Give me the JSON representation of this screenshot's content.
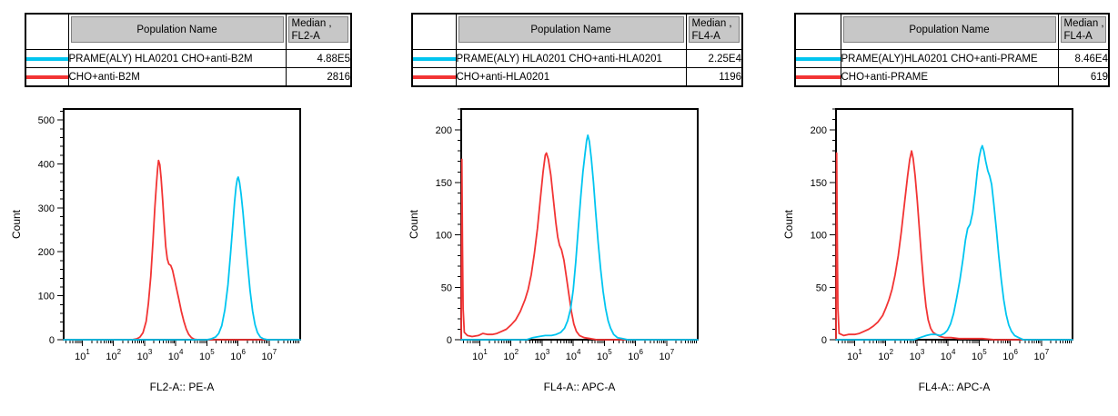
{
  "colors": {
    "cyan_series": "#00C5F0",
    "red_series": "#F23434",
    "table_header_bg": "#C7C7C7",
    "axis": "#000000",
    "background": "#FFFFFF"
  },
  "panels": [
    {
      "table": {
        "header": {
          "population": "Population Name",
          "median_line1": "Median ,",
          "median_line2": "FL2-A"
        },
        "rows": [
          {
            "color": "#00C5F0",
            "name": "PRAME(ALY) HLA0201 CHO+anti-B2M",
            "median": "4.88E5"
          },
          {
            "color": "#F23434",
            "name": "CHO+anti-B2M",
            "median": "2816"
          }
        ]
      }
    },
    {
      "table": {
        "header": {
          "population": "Population Name",
          "median_line1": "Median ,",
          "median_line2": "FL4-A"
        },
        "rows": [
          {
            "color": "#00C5F0",
            "name": "PRAME(ALY) HLA0201 CHO+anti-HLA0201",
            "median": "2.25E4"
          },
          {
            "color": "#F23434",
            "name": "CHO+anti-HLA0201",
            "median": "1196"
          }
        ]
      }
    },
    {
      "table": {
        "header": {
          "population": "Population Name",
          "median_line1": "Median ,",
          "median_line2": "FL4-A"
        },
        "rows": [
          {
            "color": "#00C5F0",
            "name": "PRAME(ALY)HLA0201 CHO+anti-PRAME",
            "median": "8.46E4"
          },
          {
            "color": "#F23434",
            "name": "CHO+anti-PRAME",
            "median": "619"
          }
        ]
      }
    }
  ],
  "chart_data": [
    {
      "type": "line",
      "subtype": "flow-cytometry-histogram",
      "title": "",
      "xlabel": "FL2-A:: PE-A",
      "ylabel": "Count",
      "xscale": "log10",
      "xlim_log10": [
        0.4,
        8.0
      ],
      "x_major_ticks_exponents": [
        1,
        2,
        3,
        4,
        5,
        6,
        7
      ],
      "ylim": [
        0,
        525
      ],
      "y_major_ticks": [
        0,
        100,
        200,
        300,
        400,
        500
      ],
      "y_minor_step": 20,
      "grid": false,
      "legend": "none",
      "series": [
        {
          "name": "CHO+anti-B2M",
          "color": "#F23434",
          "median": "2816",
          "peak_count": 408,
          "points": [
            [
              0.4,
              0
            ],
            [
              2.6,
              0
            ],
            [
              2.75,
              2
            ],
            [
              2.85,
              6
            ],
            [
              2.95,
              16
            ],
            [
              3.05,
              42
            ],
            [
              3.12,
              82
            ],
            [
              3.2,
              145
            ],
            [
              3.27,
              225
            ],
            [
              3.33,
              300
            ],
            [
              3.38,
              352
            ],
            [
              3.42,
              390
            ],
            [
              3.45,
              408
            ],
            [
              3.49,
              398
            ],
            [
              3.53,
              368
            ],
            [
              3.58,
              318
            ],
            [
              3.63,
              262
            ],
            [
              3.68,
              212
            ],
            [
              3.73,
              184
            ],
            [
              3.78,
              172
            ],
            [
              3.84,
              169
            ],
            [
              3.9,
              158
            ],
            [
              3.96,
              138
            ],
            [
              4.03,
              115
            ],
            [
              4.1,
              92
            ],
            [
              4.18,
              65
            ],
            [
              4.26,
              42
            ],
            [
              4.34,
              24
            ],
            [
              4.42,
              12
            ],
            [
              4.5,
              5
            ],
            [
              4.6,
              1
            ],
            [
              4.72,
              0
            ],
            [
              8,
              0
            ]
          ]
        },
        {
          "name": "PRAME(ALY) HLA0201 CHO+anti-B2M",
          "color": "#00C5F0",
          "median": "4.88E5",
          "peak_count": 370,
          "points": [
            [
              0.4,
              0
            ],
            [
              5.0,
              0
            ],
            [
              5.15,
              2
            ],
            [
              5.28,
              6
            ],
            [
              5.38,
              14
            ],
            [
              5.48,
              32
            ],
            [
              5.58,
              68
            ],
            [
              5.68,
              125
            ],
            [
              5.76,
              195
            ],
            [
              5.83,
              258
            ],
            [
              5.89,
              312
            ],
            [
              5.94,
              348
            ],
            [
              5.98,
              366
            ],
            [
              6.01,
              370
            ],
            [
              6.05,
              358
            ],
            [
              6.1,
              332
            ],
            [
              6.16,
              290
            ],
            [
              6.23,
              235
            ],
            [
              6.31,
              172
            ],
            [
              6.39,
              112
            ],
            [
              6.47,
              65
            ],
            [
              6.55,
              34
            ],
            [
              6.63,
              16
            ],
            [
              6.72,
              6
            ],
            [
              6.82,
              2
            ],
            [
              6.95,
              0
            ],
            [
              8,
              0
            ]
          ]
        }
      ]
    },
    {
      "type": "line",
      "subtype": "flow-cytometry-histogram",
      "title": "",
      "xlabel": "FL4-A:: APC-A",
      "ylabel": "Count",
      "xscale": "log10",
      "xlim_log10": [
        0.4,
        8.0
      ],
      "x_major_ticks_exponents": [
        1,
        2,
        3,
        4,
        5,
        6,
        7
      ],
      "ylim": [
        0,
        220
      ],
      "y_major_ticks": [
        0,
        50,
        100,
        150,
        200
      ],
      "y_minor_step": 10,
      "grid": false,
      "legend": "none",
      "series": [
        {
          "name": "CHO+anti-HLA0201",
          "color": "#F23434",
          "median": "1196",
          "peak_count": 178,
          "points": [
            [
              0.4,
              0
            ],
            [
              0.42,
              172
            ],
            [
              0.44,
              90
            ],
            [
              0.46,
              30
            ],
            [
              0.5,
              7
            ],
            [
              0.6,
              4
            ],
            [
              0.75,
              3
            ],
            [
              0.95,
              4
            ],
            [
              1.1,
              6
            ],
            [
              1.25,
              5
            ],
            [
              1.4,
              5
            ],
            [
              1.55,
              6
            ],
            [
              1.7,
              8
            ],
            [
              1.85,
              10
            ],
            [
              2.0,
              14
            ],
            [
              2.15,
              19
            ],
            [
              2.3,
              27
            ],
            [
              2.45,
              38
            ],
            [
              2.55,
              48
            ],
            [
              2.65,
              62
            ],
            [
              2.75,
              82
            ],
            [
              2.85,
              106
            ],
            [
              2.95,
              136
            ],
            [
              3.03,
              160
            ],
            [
              3.1,
              176
            ],
            [
              3.14,
              178
            ],
            [
              3.2,
              172
            ],
            [
              3.28,
              157
            ],
            [
              3.36,
              134
            ],
            [
              3.44,
              112
            ],
            [
              3.5,
              98
            ],
            [
              3.56,
              90
            ],
            [
              3.62,
              86
            ],
            [
              3.7,
              76
            ],
            [
              3.78,
              60
            ],
            [
              3.86,
              43
            ],
            [
              3.94,
              27
            ],
            [
              4.02,
              15
            ],
            [
              4.1,
              8
            ],
            [
              4.2,
              4
            ],
            [
              4.35,
              2
            ],
            [
              4.55,
              1
            ],
            [
              4.75,
              0
            ],
            [
              8,
              0
            ]
          ]
        },
        {
          "name": "PRAME(ALY) HLA0201 CHO+anti-HLA0201",
          "color": "#00C5F0",
          "median": "2.25E4",
          "peak_count": 195,
          "points": [
            [
              0.4,
              0
            ],
            [
              2.5,
              0
            ],
            [
              2.7,
              2
            ],
            [
              2.9,
              3
            ],
            [
              3.1,
              4
            ],
            [
              3.3,
              4
            ],
            [
              3.45,
              5
            ],
            [
              3.6,
              7
            ],
            [
              3.72,
              11
            ],
            [
              3.82,
              18
            ],
            [
              3.92,
              30
            ],
            [
              4.0,
              48
            ],
            [
              4.08,
              74
            ],
            [
              4.16,
              105
            ],
            [
              4.24,
              136
            ],
            [
              4.31,
              160
            ],
            [
              4.38,
              178
            ],
            [
              4.43,
              190
            ],
            [
              4.47,
              195
            ],
            [
              4.52,
              189
            ],
            [
              4.58,
              173
            ],
            [
              4.65,
              150
            ],
            [
              4.72,
              122
            ],
            [
              4.8,
              93
            ],
            [
              4.88,
              67
            ],
            [
              4.96,
              46
            ],
            [
              5.04,
              30
            ],
            [
              5.12,
              18
            ],
            [
              5.2,
              11
            ],
            [
              5.3,
              5
            ],
            [
              5.42,
              2
            ],
            [
              5.58,
              1
            ],
            [
              5.75,
              0
            ],
            [
              8,
              0
            ]
          ]
        }
      ]
    },
    {
      "type": "line",
      "subtype": "flow-cytometry-histogram",
      "title": "",
      "xlabel": "FL4-A:: APC-A",
      "ylabel": "Count",
      "xscale": "log10",
      "xlim_log10": [
        0.4,
        8.0
      ],
      "x_major_ticks_exponents": [
        1,
        2,
        3,
        4,
        5,
        6,
        7
      ],
      "ylim": [
        0,
        220
      ],
      "y_major_ticks": [
        0,
        50,
        100,
        150,
        200
      ],
      "y_minor_step": 10,
      "grid": false,
      "legend": "none",
      "series": [
        {
          "name": "CHO+anti-PRAME",
          "color": "#F23434",
          "median": "619",
          "peak_count": 180,
          "points": [
            [
              0.4,
              0
            ],
            [
              0.42,
              178
            ],
            [
              0.44,
              95
            ],
            [
              0.46,
              30
            ],
            [
              0.5,
              6
            ],
            [
              0.65,
              4
            ],
            [
              0.8,
              5
            ],
            [
              1.0,
              5
            ],
            [
              1.15,
              6
            ],
            [
              1.3,
              8
            ],
            [
              1.45,
              10
            ],
            [
              1.6,
              13
            ],
            [
              1.75,
              17
            ],
            [
              1.9,
              23
            ],
            [
              2.0,
              30
            ],
            [
              2.1,
              38
            ],
            [
              2.2,
              48
            ],
            [
              2.3,
              62
            ],
            [
              2.4,
              80
            ],
            [
              2.5,
              103
            ],
            [
              2.6,
              130
            ],
            [
              2.7,
              156
            ],
            [
              2.77,
              172
            ],
            [
              2.83,
              180
            ],
            [
              2.88,
              173
            ],
            [
              2.94,
              157
            ],
            [
              3.01,
              133
            ],
            [
              3.08,
              105
            ],
            [
              3.15,
              77
            ],
            [
              3.22,
              52
            ],
            [
              3.29,
              32
            ],
            [
              3.36,
              19
            ],
            [
              3.44,
              11
            ],
            [
              3.52,
              7
            ],
            [
              3.62,
              5
            ],
            [
              3.75,
              3
            ],
            [
              3.9,
              2
            ],
            [
              4.1,
              2
            ],
            [
              4.35,
              1
            ],
            [
              4.7,
              1
            ],
            [
              5.1,
              1
            ],
            [
              5.5,
              0
            ],
            [
              8,
              0
            ]
          ]
        },
        {
          "name": "PRAME(ALY)HLA0201 CHO+anti-PRAME",
          "color": "#00C5F0",
          "median": "8.46E4",
          "peak_count": 185,
          "points": [
            [
              0.4,
              0
            ],
            [
              2.9,
              0
            ],
            [
              3.1,
              2
            ],
            [
              3.3,
              4
            ],
            [
              3.45,
              5
            ],
            [
              3.6,
              5
            ],
            [
              3.75,
              4
            ],
            [
              3.88,
              6
            ],
            [
              3.98,
              9
            ],
            [
              4.08,
              15
            ],
            [
              4.18,
              25
            ],
            [
              4.28,
              40
            ],
            [
              4.38,
              57
            ],
            [
              4.48,
              77
            ],
            [
              4.56,
              95
            ],
            [
              4.63,
              106
            ],
            [
              4.71,
              110
            ],
            [
              4.79,
              121
            ],
            [
              4.87,
              140
            ],
            [
              4.94,
              160
            ],
            [
              5.0,
              174
            ],
            [
              5.06,
              182
            ],
            [
              5.1,
              185
            ],
            [
              5.15,
              180
            ],
            [
              5.21,
              170
            ],
            [
              5.28,
              161
            ],
            [
              5.34,
              156
            ],
            [
              5.4,
              148
            ],
            [
              5.47,
              130
            ],
            [
              5.55,
              106
            ],
            [
              5.63,
              80
            ],
            [
              5.71,
              57
            ],
            [
              5.79,
              38
            ],
            [
              5.87,
              24
            ],
            [
              5.95,
              14
            ],
            [
              6.04,
              8
            ],
            [
              6.14,
              4
            ],
            [
              6.27,
              2
            ],
            [
              6.42,
              0
            ],
            [
              8,
              0
            ]
          ]
        }
      ]
    }
  ]
}
